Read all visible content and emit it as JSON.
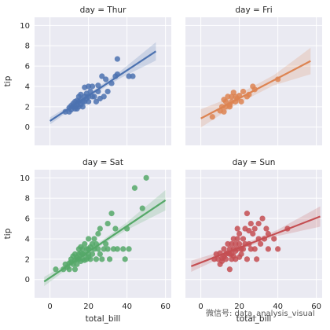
{
  "watermark": "微信号: data_analysis_visual",
  "chart_data": {
    "type": "scatter",
    "xlabel": "total_bill",
    "ylabel": "tip",
    "xlim": [
      -8,
      63
    ],
    "ylim": [
      -1.8,
      10.8
    ],
    "xticks": [
      0,
      20,
      40,
      60
    ],
    "yticks": [
      0,
      2,
      4,
      6,
      8,
      10
    ],
    "grid": true,
    "regression": true,
    "panels": [
      {
        "title": "day = Thur",
        "color": "#4c72b0",
        "fit": [
          [
            0,
            0.6
          ],
          [
            55,
            7.45
          ]
        ],
        "ci_half": [
          0.35,
          0.15,
          0.35,
          0.9
        ],
        "points": [
          [
            8,
            1.5
          ],
          [
            10,
            1.9
          ],
          [
            10,
            1.5
          ],
          [
            11,
            2.1
          ],
          [
            11,
            1.7
          ],
          [
            12,
            2.0
          ],
          [
            12,
            2.3
          ],
          [
            13,
            1.8
          ],
          [
            13,
            2.5
          ],
          [
            13,
            2.0
          ],
          [
            14,
            2.2
          ],
          [
            14,
            2.6
          ],
          [
            14,
            1.8
          ],
          [
            15,
            2.5
          ],
          [
            15,
            2.0
          ],
          [
            15,
            3.0
          ],
          [
            16,
            2.2
          ],
          [
            16,
            2.7
          ],
          [
            16,
            3.2
          ],
          [
            17,
            2.5
          ],
          [
            17,
            2.0
          ],
          [
            18,
            3.0
          ],
          [
            18,
            2.5
          ],
          [
            18,
            3.9
          ],
          [
            19,
            3.3
          ],
          [
            19,
            2.8
          ],
          [
            20,
            3.0
          ],
          [
            20,
            4.0
          ],
          [
            20,
            2.5
          ],
          [
            21,
            3.5
          ],
          [
            22,
            3.0
          ],
          [
            22,
            4.0
          ],
          [
            23,
            3.0
          ],
          [
            24,
            2.5
          ],
          [
            25,
            3.5
          ],
          [
            25,
            4.1
          ],
          [
            26,
            2.8
          ],
          [
            27,
            5.0
          ],
          [
            28,
            3.0
          ],
          [
            29,
            4.7
          ],
          [
            30,
            3.5
          ],
          [
            32,
            4.3
          ],
          [
            34,
            5.0
          ],
          [
            35,
            5.2
          ],
          [
            35,
            6.7
          ],
          [
            41,
            5.0
          ],
          [
            43,
            5.0
          ]
        ]
      },
      {
        "title": "day = Fri",
        "color": "#dd8452",
        "fit": [
          [
            0,
            0.85
          ],
          [
            57,
            6.5
          ]
        ],
        "ci_half": [
          0.9,
          0.45,
          0.5,
          1.3
        ],
        "points": [
          [
            6,
            1.0
          ],
          [
            10,
            1.6
          ],
          [
            11,
            2.0
          ],
          [
            12,
            1.5
          ],
          [
            12,
            2.7
          ],
          [
            13,
            2.5
          ],
          [
            13,
            2.0
          ],
          [
            14,
            3.0
          ],
          [
            15,
            2.2
          ],
          [
            15,
            2.0
          ],
          [
            16,
            3.0
          ],
          [
            16,
            2.5
          ],
          [
            17,
            3.4
          ],
          [
            18,
            2.5
          ],
          [
            18,
            3.0
          ],
          [
            19,
            2.8
          ],
          [
            20,
            3.1
          ],
          [
            21,
            2.5
          ],
          [
            22,
            3.5
          ],
          [
            24,
            3.0
          ],
          [
            25,
            3.2
          ],
          [
            27,
            4.0
          ],
          [
            28,
            3.7
          ],
          [
            40,
            4.7
          ]
        ]
      },
      {
        "title": "day = Sat",
        "color": "#55a868",
        "fit": [
          [
            -3,
            -0.2
          ],
          [
            60,
            7.8
          ]
        ],
        "ci_half": [
          0.45,
          0.15,
          0.35,
          1.0
        ],
        "points": [
          [
            3,
            1.0
          ],
          [
            7,
            1.0
          ],
          [
            8,
            1.5
          ],
          [
            9,
            1.2
          ],
          [
            10,
            1.6
          ],
          [
            10,
            1.0
          ],
          [
            11,
            1.7
          ],
          [
            11,
            2.0
          ],
          [
            12,
            1.5
          ],
          [
            12,
            2.3
          ],
          [
            13,
            1.9
          ],
          [
            13,
            2.5
          ],
          [
            13,
            1.0
          ],
          [
            14,
            2.0
          ],
          [
            14,
            2.2
          ],
          [
            14,
            1.5
          ],
          [
            15,
            2.0
          ],
          [
            15,
            3.0
          ],
          [
            15,
            2.5
          ],
          [
            16,
            2.6
          ],
          [
            16,
            1.8
          ],
          [
            16,
            3.2
          ],
          [
            17,
            2.0
          ],
          [
            17,
            3.0
          ],
          [
            17,
            2.5
          ],
          [
            18,
            2.5
          ],
          [
            18,
            3.5
          ],
          [
            18,
            1.9
          ],
          [
            19,
            3.0
          ],
          [
            19,
            2.0
          ],
          [
            20,
            2.5
          ],
          [
            20,
            3.0
          ],
          [
            20,
            4.0
          ],
          [
            20,
            2.2
          ],
          [
            21,
            3.2
          ],
          [
            21,
            2.0
          ],
          [
            22,
            3.5
          ],
          [
            22,
            2.5
          ],
          [
            23,
            3.0
          ],
          [
            23,
            4.0
          ],
          [
            24,
            3.5
          ],
          [
            24,
            2.0
          ],
          [
            25,
            3.0
          ],
          [
            25,
            4.5
          ],
          [
            26,
            2.5
          ],
          [
            26,
            5.0
          ],
          [
            27,
            2.0
          ],
          [
            28,
            3.0
          ],
          [
            29,
            3.5
          ],
          [
            30,
            3.0
          ],
          [
            30,
            5.5
          ],
          [
            31,
            2.0
          ],
          [
            32,
            6.5
          ],
          [
            33,
            3.0
          ],
          [
            34,
            5.0
          ],
          [
            35,
            3.0
          ],
          [
            38,
            3.0
          ],
          [
            39,
            2.0
          ],
          [
            40,
            5.0
          ],
          [
            41,
            3.0
          ],
          [
            44,
            9.0
          ],
          [
            48,
            7.0
          ],
          [
            50,
            10.0
          ]
        ]
      },
      {
        "title": "day = Sun",
        "color": "#c44e52",
        "fit": [
          [
            -5,
            1.3
          ],
          [
            62,
            6.2
          ]
        ],
        "ci_half": [
          0.55,
          0.2,
          0.3,
          1.0
        ],
        "points": [
          [
            7,
            2.0
          ],
          [
            8,
            2.5
          ],
          [
            9,
            2.0
          ],
          [
            10,
            2.6
          ],
          [
            10,
            1.5
          ],
          [
            11,
            2.1
          ],
          [
            11,
            1.8
          ],
          [
            12,
            2.2
          ],
          [
            12,
            3.0
          ],
          [
            13,
            2.5
          ],
          [
            13,
            2.0
          ],
          [
            14,
            2.6
          ],
          [
            14,
            3.5
          ],
          [
            15,
            1.0
          ],
          [
            15,
            2.5
          ],
          [
            15,
            3.0
          ],
          [
            16,
            2.0
          ],
          [
            16,
            3.5
          ],
          [
            16,
            2.5
          ],
          [
            17,
            3.0
          ],
          [
            17,
            2.3
          ],
          [
            17,
            4.0
          ],
          [
            18,
            3.5
          ],
          [
            18,
            2.0
          ],
          [
            18,
            2.8
          ],
          [
            19,
            3.0
          ],
          [
            19,
            4.0
          ],
          [
            19,
            5.0
          ],
          [
            20,
            3.5
          ],
          [
            20,
            2.2
          ],
          [
            20,
            4.5
          ],
          [
            21,
            3.0
          ],
          [
            21,
            2.5
          ],
          [
            22,
            4.0
          ],
          [
            22,
            3.0
          ],
          [
            23,
            5.0
          ],
          [
            23,
            3.5
          ],
          [
            24,
            6.5
          ],
          [
            24,
            2.0
          ],
          [
            25,
            3.5
          ],
          [
            25,
            4.8
          ],
          [
            26,
            3.0
          ],
          [
            26,
            5.5
          ],
          [
            27,
            4.5
          ],
          [
            28,
            3.0
          ],
          [
            28,
            5.0
          ],
          [
            29,
            2.0
          ],
          [
            30,
            4.0
          ],
          [
            30,
            5.5
          ],
          [
            31,
            3.5
          ],
          [
            32,
            6.0
          ],
          [
            33,
            4.0
          ],
          [
            34,
            5.0
          ],
          [
            35,
            3.0
          ],
          [
            35,
            4.5
          ],
          [
            38,
            4.0
          ],
          [
            40,
            3.0
          ],
          [
            45,
            5.0
          ]
        ]
      }
    ]
  }
}
